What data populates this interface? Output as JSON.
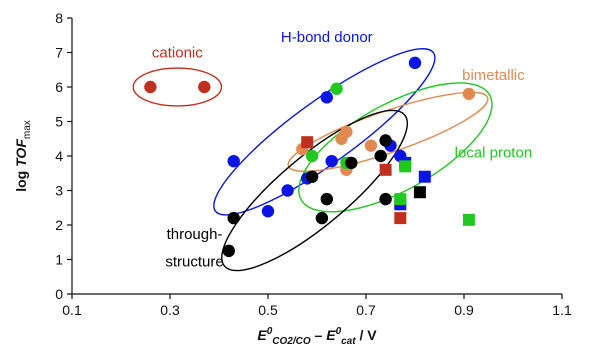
{
  "chart_data": {
    "type": "scatter",
    "title": "",
    "xlabel": {
      "main": "E",
      "sup1": "0",
      "sub1": "CO2/CO",
      "dash": " – ",
      "main2": "E",
      "sup2": "0",
      "sub2": "cat",
      "unit": " / V"
    },
    "ylabel": {
      "main": "log ",
      "italic": "TOF",
      "sub": "max"
    },
    "xlim": [
      0.1,
      1.1
    ],
    "ylim": [
      0,
      8
    ],
    "xticks": [
      0.1,
      0.3,
      0.5,
      0.7,
      0.9,
      1.1
    ],
    "xtick_labels": [
      "0.1",
      "0.3",
      "0.5",
      "0.7",
      "0.9",
      "1.1"
    ],
    "yticks": [
      0,
      1,
      2,
      3,
      4,
      5,
      6,
      7,
      8
    ],
    "ytick_labels": [
      "0",
      "1",
      "2",
      "3",
      "4",
      "5",
      "6",
      "7",
      "8"
    ],
    "grid": false,
    "legend": "none",
    "series": [
      {
        "key": "cationic",
        "color": "#c0301e",
        "marker": "circle",
        "points": [
          {
            "x": 0.26,
            "y": 6.0
          },
          {
            "x": 0.37,
            "y": 6.0
          }
        ]
      },
      {
        "key": "hbond",
        "color": "#0a14e6",
        "marker": "circle",
        "points": [
          {
            "x": 0.43,
            "y": 3.85
          },
          {
            "x": 0.5,
            "y": 2.4
          },
          {
            "x": 0.54,
            "y": 3.0
          },
          {
            "x": 0.58,
            "y": 3.35
          },
          {
            "x": 0.62,
            "y": 5.7
          },
          {
            "x": 0.63,
            "y": 3.85
          },
          {
            "x": 0.75,
            "y": 4.3
          },
          {
            "x": 0.77,
            "y": 4.0
          },
          {
            "x": 0.8,
            "y": 6.7
          }
        ]
      },
      {
        "key": "bimetallic",
        "color": "#e08a52",
        "marker": "circle",
        "points": [
          {
            "x": 0.57,
            "y": 4.2
          },
          {
            "x": 0.65,
            "y": 4.5
          },
          {
            "x": 0.66,
            "y": 4.7
          },
          {
            "x": 0.66,
            "y": 3.6
          },
          {
            "x": 0.71,
            "y": 4.3
          },
          {
            "x": 0.91,
            "y": 5.8
          }
        ]
      },
      {
        "key": "local_green",
        "color": "#22c822",
        "marker": "circle",
        "points": [
          {
            "x": 0.59,
            "y": 4.0
          },
          {
            "x": 0.64,
            "y": 5.95
          },
          {
            "x": 0.66,
            "y": 3.8
          }
        ]
      },
      {
        "key": "through",
        "color": "#000000",
        "marker": "circle",
        "points": [
          {
            "x": 0.42,
            "y": 1.25
          },
          {
            "x": 0.43,
            "y": 2.2
          },
          {
            "x": 0.59,
            "y": 3.4
          },
          {
            "x": 0.61,
            "y": 2.2
          },
          {
            "x": 0.62,
            "y": 2.75
          },
          {
            "x": 0.67,
            "y": 3.8
          },
          {
            "x": 0.73,
            "y": 4.0
          },
          {
            "x": 0.74,
            "y": 4.45
          },
          {
            "x": 0.74,
            "y": 2.75
          }
        ]
      },
      {
        "key": "sq_red",
        "color": "#c0301e",
        "marker": "square",
        "points": [
          {
            "x": 0.58,
            "y": 4.4
          },
          {
            "x": 0.74,
            "y": 3.6
          },
          {
            "x": 0.77,
            "y": 2.2
          }
        ]
      },
      {
        "key": "sq_blue",
        "color": "#0a14e6",
        "marker": "square",
        "points": [
          {
            "x": 0.77,
            "y": 2.6
          },
          {
            "x": 0.78,
            "y": 3.8
          },
          {
            "x": 0.82,
            "y": 3.4
          }
        ]
      },
      {
        "key": "sq_green",
        "color": "#22c822",
        "marker": "square",
        "points": [
          {
            "x": 0.77,
            "y": 2.75
          },
          {
            "x": 0.78,
            "y": 3.7
          },
          {
            "x": 0.91,
            "y": 2.15
          }
        ]
      },
      {
        "key": "sq_black",
        "color": "#000000",
        "marker": "square",
        "points": [
          {
            "x": 0.81,
            "y": 2.95
          }
        ]
      }
    ],
    "ellipses": [
      {
        "key": "cationic",
        "color": "#c0301e",
        "cx": 0.315,
        "cy": 6.0,
        "rx": 0.09,
        "ry": 0.55,
        "angle": 0
      },
      {
        "key": "hbond",
        "color": "#0a14e6",
        "cx": 0.615,
        "cy": 4.7,
        "rx": 0.275,
        "ry": 0.9,
        "angle": -36
      },
      {
        "key": "bimetallic",
        "color": "#e08a52",
        "cx": 0.745,
        "cy": 4.7,
        "rx": 0.215,
        "ry": 0.6,
        "angle": -19
      },
      {
        "key": "local",
        "color": "#22c822",
        "cx": 0.76,
        "cy": 4.25,
        "rx": 0.22,
        "ry": 1.25,
        "angle": -29
      },
      {
        "key": "through",
        "color": "#000000",
        "cx": 0.595,
        "cy": 3.0,
        "rx": 0.24,
        "ry": 1.0,
        "angle": -40
      }
    ],
    "annotations": [
      {
        "key": "cationic",
        "text": "cationic",
        "color": "#c0301e",
        "x": 0.315,
        "y": 6.85
      },
      {
        "key": "hbond",
        "text": "H-bond donor",
        "color": "#0a14e6",
        "x": 0.62,
        "y": 7.3
      },
      {
        "key": "bimetallic",
        "text": "bimetallic",
        "color": "#e08a52",
        "x": 0.96,
        "y": 6.2
      },
      {
        "key": "local",
        "text": "local proton",
        "color": "#22c822",
        "x": 0.96,
        "y": 3.95
      },
      {
        "key": "through1",
        "text": "through-",
        "color": "#000000",
        "x": 0.35,
        "y": 1.6
      },
      {
        "key": "through2",
        "text": "structure",
        "color": "#000000",
        "x": 0.35,
        "y": 0.8
      }
    ]
  }
}
